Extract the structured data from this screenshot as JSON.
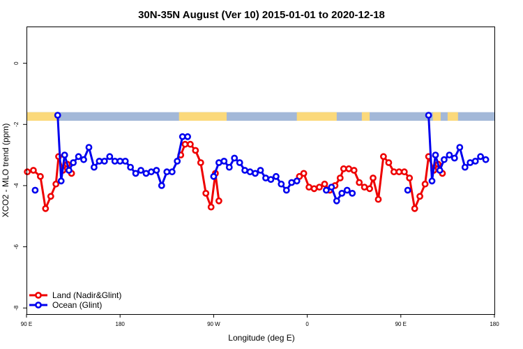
{
  "colors": {
    "land": "#ee0000",
    "ocean": "#0000ee",
    "ocean_strip": "#a3b8d8",
    "land_strip": "#fbd97b"
  },
  "chart_data": {
    "type": "line",
    "title": "30N-35N August (Ver 10)   2015-01-01 to 2020-12-18",
    "xlabel": "Longitude (deg E)",
    "ylabel": "XCO2 - MLO trend (ppm)",
    "xlim": [
      90,
      360
    ],
    "ylim": [
      -8.2,
      1.2
    ],
    "x_ticks": [
      {
        "value": 90,
        "label": "90 E"
      },
      {
        "value": 144,
        "label": "180"
      },
      {
        "value": 198,
        "label": "90 W"
      },
      {
        "value": 252,
        "label": "0"
      },
      {
        "value": 306,
        "label": "90 E"
      },
      {
        "value": 360,
        "label": "180"
      }
    ],
    "y_ticks": [
      {
        "value": 0,
        "label": "0"
      },
      {
        "value": -2,
        "label": "-2"
      },
      {
        "value": -4,
        "label": "-4"
      },
      {
        "value": -6,
        "label": "-6"
      },
      {
        "value": -8,
        "label": "-8"
      }
    ],
    "landmask_strip": {
      "y_range": [
        -1.88,
        -1.6
      ],
      "land_segments": [
        [
          90,
          107.5
        ],
        [
          178,
          205.5
        ],
        [
          246,
          269
        ],
        [
          283.5,
          288
        ],
        [
          324.5,
          329
        ],
        [
          333,
          339
        ]
      ]
    },
    "series": [
      {
        "name": "Land (Nadir&Glint)",
        "color_key": "land",
        "segments": [
          [
            [
              90.5,
              -3.55
            ],
            [
              94,
              -3.5
            ],
            [
              98,
              -3.7
            ],
            [
              101,
              -4.75
            ],
            [
              104,
              -4.35
            ],
            [
              107,
              -3.95
            ],
            [
              108.5,
              -3.05
            ],
            [
              111,
              -3.5
            ],
            [
              113.5,
              -3.3
            ],
            [
              116,
              -3.6
            ]
          ],
          [
            [
              179,
              -3.0
            ],
            [
              181.5,
              -2.65
            ],
            [
              184.5,
              -2.65
            ],
            [
              187.5,
              -2.85
            ],
            [
              190.5,
              -3.25
            ],
            [
              193.5,
              -4.25
            ],
            [
              196.5,
              -4.7
            ],
            [
              199,
              -3.6
            ],
            [
              201,
              -4.5
            ]
          ],
          [
            [
              247.5,
              -3.7
            ],
            [
              250,
              -3.6
            ],
            [
              253,
              -4.05
            ],
            [
              256,
              -4.1
            ],
            [
              259,
              -4.05
            ],
            [
              262,
              -3.95
            ],
            [
              265,
              -4.15
            ],
            [
              268,
              -4.0
            ],
            [
              271,
              -3.75
            ],
            [
              273,
              -3.45
            ],
            [
              276,
              -3.45
            ],
            [
              279,
              -3.5
            ],
            [
              282,
              -3.9
            ],
            [
              285,
              -4.05
            ],
            [
              288,
              -4.1
            ],
            [
              290,
              -3.75
            ],
            [
              293,
              -4.45
            ],
            [
              296,
              -3.05
            ],
            [
              299,
              -3.25
            ],
            [
              302,
              -3.55
            ],
            [
              305,
              -3.55
            ],
            [
              308,
              -3.55
            ],
            [
              311,
              -3.75
            ],
            [
              314,
              -4.75
            ],
            [
              317,
              -4.35
            ],
            [
              320,
              -3.95
            ],
            [
              322,
              -3.05
            ],
            [
              325,
              -3.5
            ],
            [
              327.5,
              -3.3
            ],
            [
              330,
              -3.6
            ]
          ]
        ]
      },
      {
        "name": "Ocean (Glint)",
        "color_key": "ocean",
        "segments": [
          [
            [
              95,
              -4.15
            ]
          ],
          [
            [
              108,
              -1.7
            ],
            [
              110,
              -3.85
            ],
            [
              112,
              -3.0
            ],
            [
              114.5,
              -3.5
            ],
            [
              117,
              -3.25
            ],
            [
              120,
              -3.05
            ],
            [
              123,
              -3.15
            ],
            [
              126,
              -2.75
            ],
            [
              129,
              -3.4
            ],
            [
              132,
              -3.2
            ],
            [
              135,
              -3.2
            ],
            [
              138,
              -3.05
            ],
            [
              141,
              -3.2
            ],
            [
              144,
              -3.2
            ],
            [
              147,
              -3.2
            ],
            [
              150,
              -3.4
            ],
            [
              153,
              -3.6
            ],
            [
              156,
              -3.5
            ],
            [
              159,
              -3.6
            ],
            [
              162,
              -3.55
            ],
            [
              165,
              -3.5
            ],
            [
              168,
              -4.0
            ],
            [
              171,
              -3.55
            ],
            [
              174,
              -3.55
            ],
            [
              177,
              -3.2
            ],
            [
              180,
              -2.4
            ],
            [
              183,
              -2.4
            ]
          ],
          [
            [
              198,
              -3.7
            ],
            [
              201,
              -3.25
            ],
            [
              204,
              -3.2
            ],
            [
              207,
              -3.4
            ],
            [
              210,
              -3.1
            ],
            [
              213,
              -3.25
            ],
            [
              216,
              -3.5
            ],
            [
              219,
              -3.55
            ],
            [
              222,
              -3.6
            ],
            [
              225,
              -3.5
            ],
            [
              228,
              -3.75
            ],
            [
              231,
              -3.8
            ],
            [
              234,
              -3.7
            ],
            [
              237,
              -3.95
            ],
            [
              240,
              -4.15
            ],
            [
              243,
              -3.9
            ],
            [
              246,
              -3.85
            ]
          ],
          [
            [
              263,
              -4.15
            ],
            [
              266,
              -4.05
            ],
            [
              269,
              -4.5
            ],
            [
              272,
              -4.25
            ],
            [
              275,
              -4.15
            ],
            [
              278,
              -4.25
            ]
          ],
          [
            [
              310,
              -4.15
            ]
          ],
          [
            [
              322,
              -1.7
            ],
            [
              324,
              -3.85
            ],
            [
              326,
              -3.0
            ],
            [
              328.5,
              -3.5
            ],
            [
              331,
              -3.15
            ],
            [
              334,
              -3.0
            ],
            [
              337,
              -3.1
            ],
            [
              340,
              -2.75
            ],
            [
              343,
              -3.4
            ],
            [
              346,
              -3.25
            ],
            [
              349,
              -3.2
            ],
            [
              352,
              -3.05
            ],
            [
              355,
              -3.15
            ]
          ]
        ]
      }
    ],
    "legend": {
      "position": "bottom-left",
      "entries": [
        {
          "label": "Land (Nadir&Glint)",
          "color_key": "land"
        },
        {
          "label": "Ocean (Glint)",
          "color_key": "ocean"
        }
      ]
    }
  }
}
